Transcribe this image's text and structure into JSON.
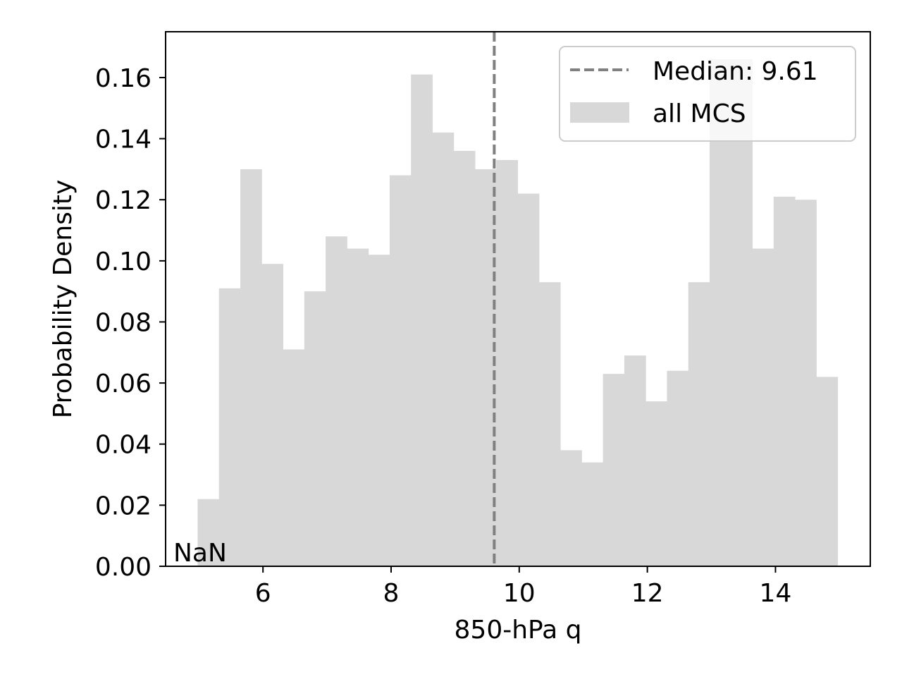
{
  "chart_data": {
    "type": "histogram",
    "xlabel": "850-hPa q",
    "ylabel": "Probability Density",
    "xlim": [
      4.48,
      15.48
    ],
    "ylim": [
      0,
      0.175
    ],
    "bin_start": 4.98,
    "bin_width": 0.333,
    "densities": [
      0.022,
      0.091,
      0.13,
      0.099,
      0.071,
      0.09,
      0.108,
      0.104,
      0.102,
      0.128,
      0.161,
      0.142,
      0.136,
      0.13,
      0.133,
      0.122,
      0.093,
      0.038,
      0.034,
      0.063,
      0.069,
      0.054,
      0.064,
      0.093,
      0.166,
      0.166,
      0.104,
      0.121,
      0.12,
      0.062
    ],
    "xticks": [
      6,
      8,
      10,
      12,
      14
    ],
    "xtick_labels": [
      "6",
      "8",
      "10",
      "12",
      "14"
    ],
    "yticks": [
      0.0,
      0.02,
      0.04,
      0.06,
      0.08,
      0.1,
      0.12,
      0.14,
      0.16
    ],
    "ytick_labels": [
      "0.00",
      "0.02",
      "0.04",
      "0.06",
      "0.08",
      "0.10",
      "0.12",
      "0.14",
      "0.16"
    ],
    "median": 9.61,
    "series_name": "all MCS",
    "legend": {
      "location": "upper right",
      "entries": [
        {
          "label": "Median: 9.61",
          "style": "dashed-line"
        },
        {
          "label": "all MCS",
          "style": "patch"
        }
      ]
    },
    "annotation": "NaN",
    "grid": false,
    "colors": {
      "bars": "#d8d8d8",
      "median_line": "#808080",
      "axes": "#000000",
      "legend_border": "#cccccc"
    }
  }
}
